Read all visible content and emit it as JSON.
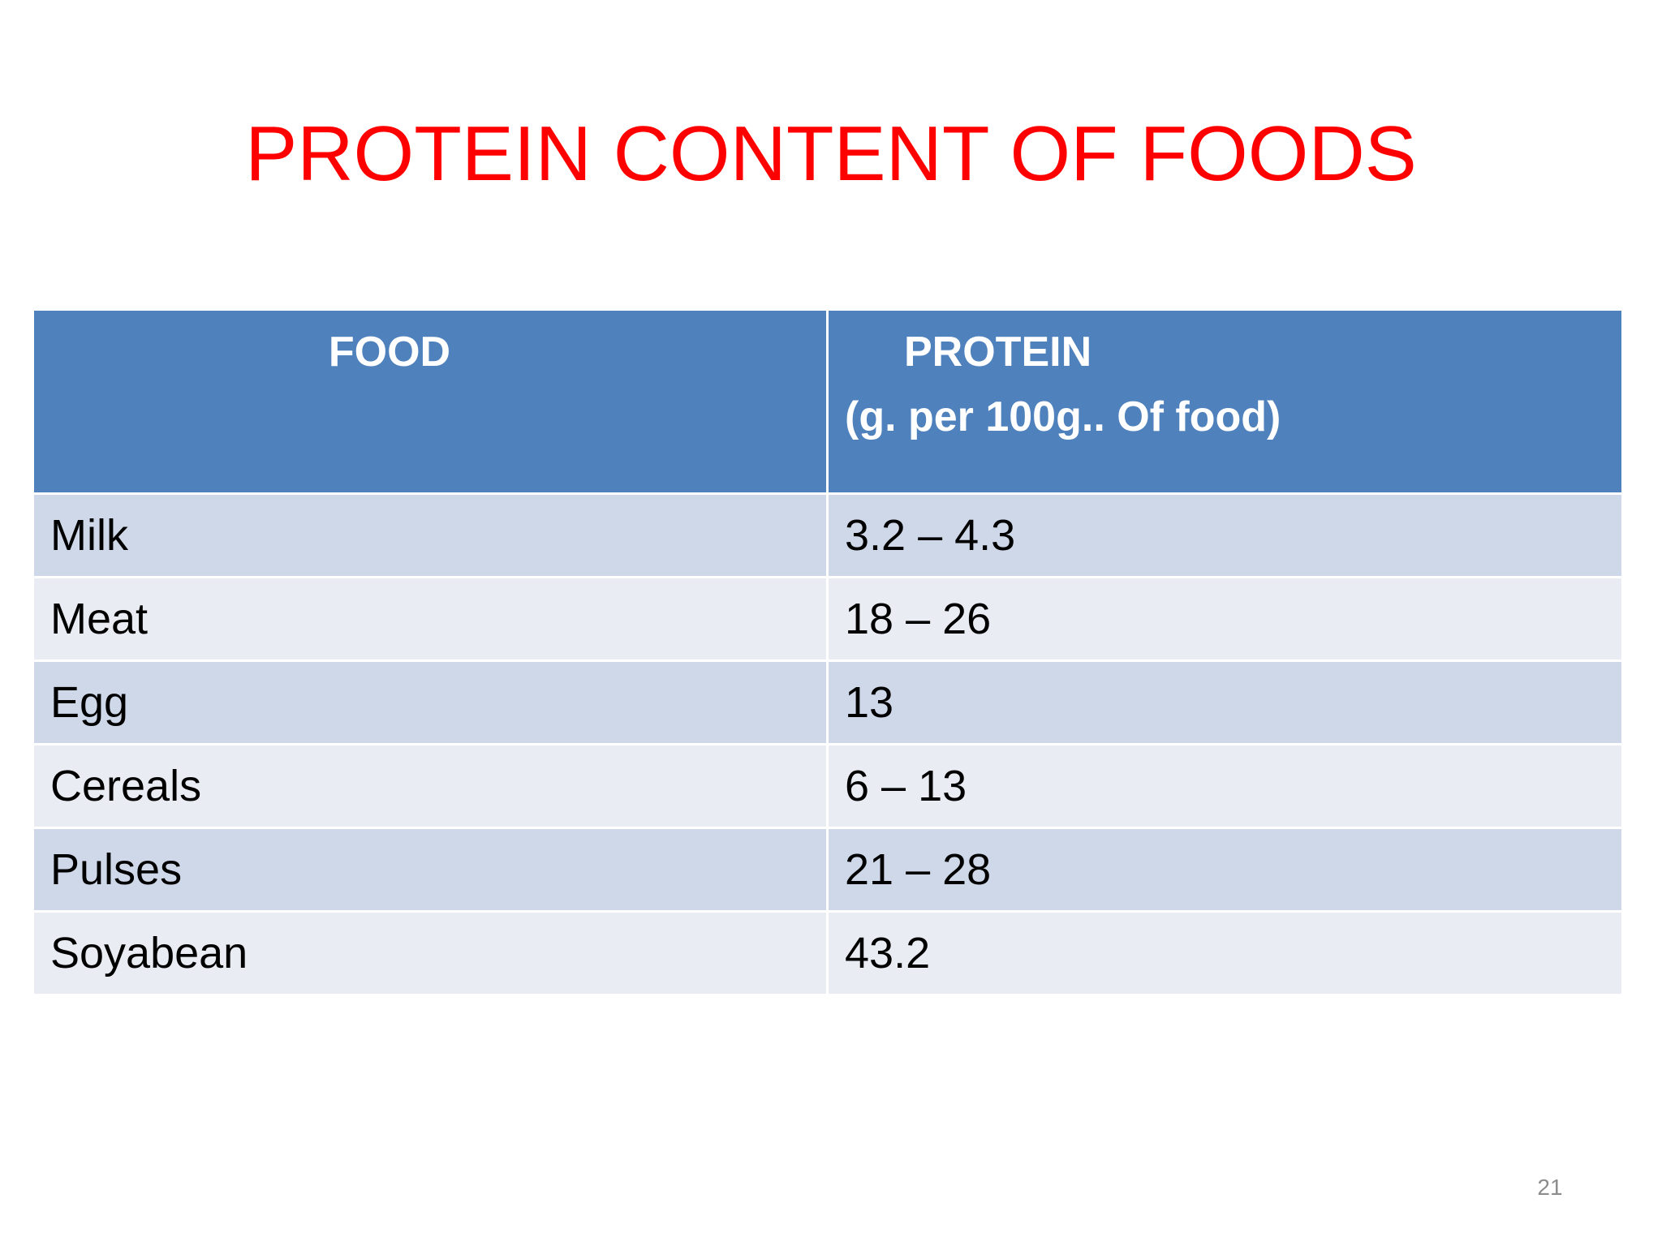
{
  "title": "PROTEIN CONTENT OF FOODS",
  "table": {
    "header": [
      {
        "label": "FOOD"
      },
      {
        "label": "PROTEIN",
        "sublabel": "(g. per 100g.. Of food)"
      }
    ],
    "rows": [
      [
        "Milk",
        "3.2 – 4.3"
      ],
      [
        "Meat",
        "18 – 26"
      ],
      [
        "Egg",
        "13"
      ],
      [
        "Cereals",
        "6 – 13"
      ],
      [
        "Pulses",
        "21 – 28"
      ],
      [
        "Soyabean",
        "43.2"
      ]
    ]
  },
  "page_number": "21"
}
